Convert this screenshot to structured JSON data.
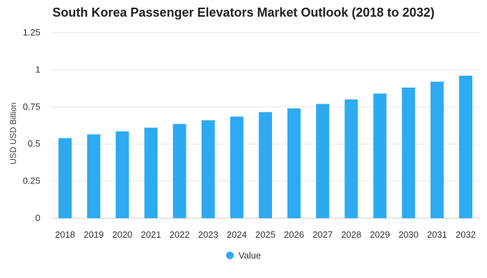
{
  "chart_data": {
    "type": "bar",
    "title": "South Korea Passenger Elevators Market Outlook (2018 to 2032)",
    "xlabel": "",
    "ylabel": "USD USD Billion",
    "categories": [
      "2018",
      "2019",
      "2020",
      "2021",
      "2022",
      "2023",
      "2024",
      "2025",
      "2026",
      "2027",
      "2028",
      "2029",
      "2030",
      "2031",
      "2032"
    ],
    "series": [
      {
        "name": "Value",
        "color": "#2eaaf2",
        "values": [
          0.54,
          0.565,
          0.585,
          0.61,
          0.635,
          0.66,
          0.685,
          0.715,
          0.74,
          0.77,
          0.8,
          0.84,
          0.88,
          0.92,
          0.96
        ]
      }
    ],
    "ylim": [
      0,
      1.25
    ],
    "yticks": [
      0,
      0.25,
      0.5,
      0.75,
      1,
      1.25
    ],
    "ytick_labels": [
      "0",
      "0.25",
      "0.5",
      "0.75",
      "1",
      "1.25"
    ],
    "grid": true,
    "legend_position": "bottom-center"
  },
  "colors": {
    "grid": "#e6e6e6",
    "axis_text": "#333333"
  }
}
